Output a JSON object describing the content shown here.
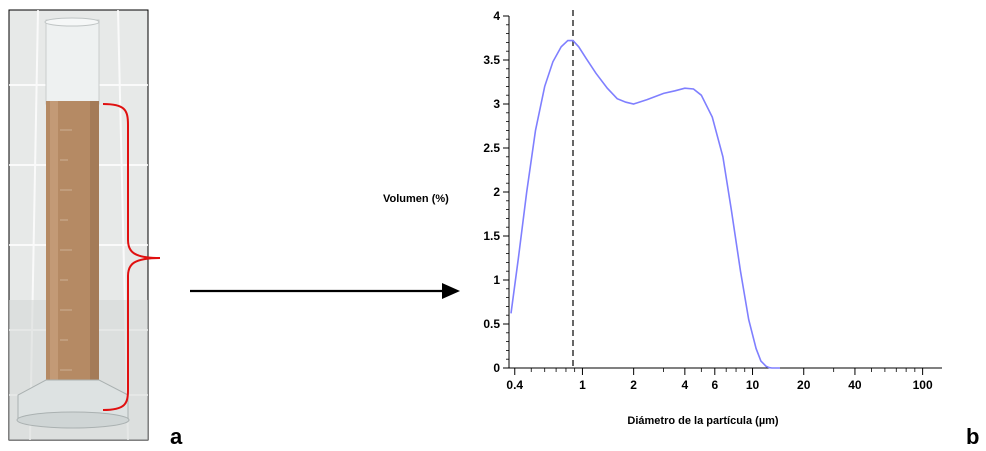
{
  "panels": {
    "left_letter": "a",
    "right_letter": "b"
  },
  "colors": {
    "liquid": "#b58a64",
    "brace": "#e01010",
    "series": "#7f7fff",
    "tile": "#e9ebea"
  },
  "chart_data": {
    "type": "line",
    "title": "",
    "xlabel": "Diámetro de la partícula (µm)",
    "ylabel": "Volumen (%)",
    "x_scale": "log",
    "xlim": [
      0.37,
      130
    ],
    "ylim": [
      0,
      4
    ],
    "x_ticks": [
      0.4,
      1,
      2,
      4,
      6,
      10,
      20,
      40,
      100
    ],
    "x_tick_labels": [
      "0.4",
      "1",
      "2",
      "4",
      "6",
      "10",
      "20",
      "40",
      "100"
    ],
    "y_ticks": [
      0,
      0.5,
      1,
      1.5,
      2,
      2.5,
      3,
      3.5,
      4
    ],
    "y_tick_labels": [
      "0",
      "0.5",
      "1",
      "1.5",
      "2",
      "2.5",
      "3",
      "3.5",
      "4"
    ],
    "grid": false,
    "reference_line_x": 0.88,
    "series": [
      {
        "x": [
          0.38,
          0.42,
          0.47,
          0.53,
          0.6,
          0.67,
          0.75,
          0.82,
          0.88,
          0.95,
          1.05,
          1.2,
          1.4,
          1.6,
          1.8,
          2.0,
          2.4,
          3.0,
          3.5,
          4.0,
          4.5,
          5.0,
          5.8,
          6.7,
          7.5,
          8.5,
          9.5,
          10.5,
          11.2,
          12.0,
          12.5,
          13.0,
          13.7,
          14.5
        ],
        "y": [
          0.62,
          1.25,
          2.0,
          2.7,
          3.2,
          3.48,
          3.65,
          3.72,
          3.72,
          3.65,
          3.52,
          3.35,
          3.18,
          3.06,
          3.02,
          3.0,
          3.05,
          3.12,
          3.15,
          3.18,
          3.17,
          3.1,
          2.85,
          2.4,
          1.8,
          1.1,
          0.55,
          0.22,
          0.08,
          0.02,
          0.005,
          0.0,
          0.0,
          0.0
        ]
      }
    ]
  }
}
